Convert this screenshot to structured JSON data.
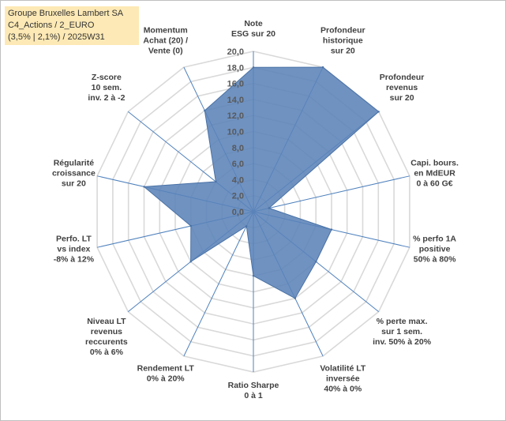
{
  "title_box": {
    "line1": "Groupe Bruxelles Lambert SA",
    "line2": "C4_Actions / 2_EURO",
    "line3": "(3,5% | 2,1%) / 2025W31"
  },
  "chart_data": {
    "type": "radar",
    "range": [
      0,
      20
    ],
    "ticks": [
      "0,0",
      "2,0",
      "4,0",
      "6,0",
      "8,0",
      "10,0",
      "12,0",
      "14,0",
      "16,0",
      "18,0",
      "20,0"
    ],
    "grid": true,
    "fill_color": "#5b83b8",
    "line_color": "#4a72a6",
    "grid_color": "#d9d9d9",
    "spoke_color": "#4f81bd",
    "categories": [
      {
        "lines": [
          "Note",
          "ESG sur 20"
        ]
      },
      {
        "lines": [
          "Profondeur",
          "historique",
          "sur 20"
        ]
      },
      {
        "lines": [
          "Profondeur",
          "revenus",
          "sur 20"
        ]
      },
      {
        "lines": [
          "Capi. bours.",
          "en MdEUR",
          "0 à 60 G€"
        ]
      },
      {
        "lines": [
          "% perfo 1A",
          "positive",
          "50% à 80%"
        ]
      },
      {
        "lines": [
          "% perte max.",
          "sur 1 sem.",
          "inv. 50% à 20%"
        ]
      },
      {
        "lines": [
          "Volatilité LT",
          "inversée",
          "40% à 0%"
        ]
      },
      {
        "lines": [
          "Ratio Sharpe",
          "0 à 1"
        ]
      },
      {
        "lines": [
          "Rendement LT",
          "0% à 20%"
        ]
      },
      {
        "lines": [
          "Niveau LT",
          "revenus",
          "reccurents",
          "0% à 6%"
        ]
      },
      {
        "lines": [
          "Perfo. LT",
          "vs index",
          "-8% à 12%"
        ]
      },
      {
        "lines": [
          "Régularité",
          "croissance",
          "sur 20"
        ]
      },
      {
        "lines": [
          "Z-score",
          "10 sem.",
          "inv. 2 à -2"
        ]
      },
      {
        "lines": [
          "Momentum",
          "Achat (20) /",
          "Vente (0)"
        ]
      }
    ],
    "values": [
      18.0,
      20.0,
      20.0,
      2.0,
      10.0,
      10.0,
      12.0,
      8.0,
      2.0,
      10.0,
      8.0,
      14.0,
      6.0,
      14.0
    ]
  }
}
